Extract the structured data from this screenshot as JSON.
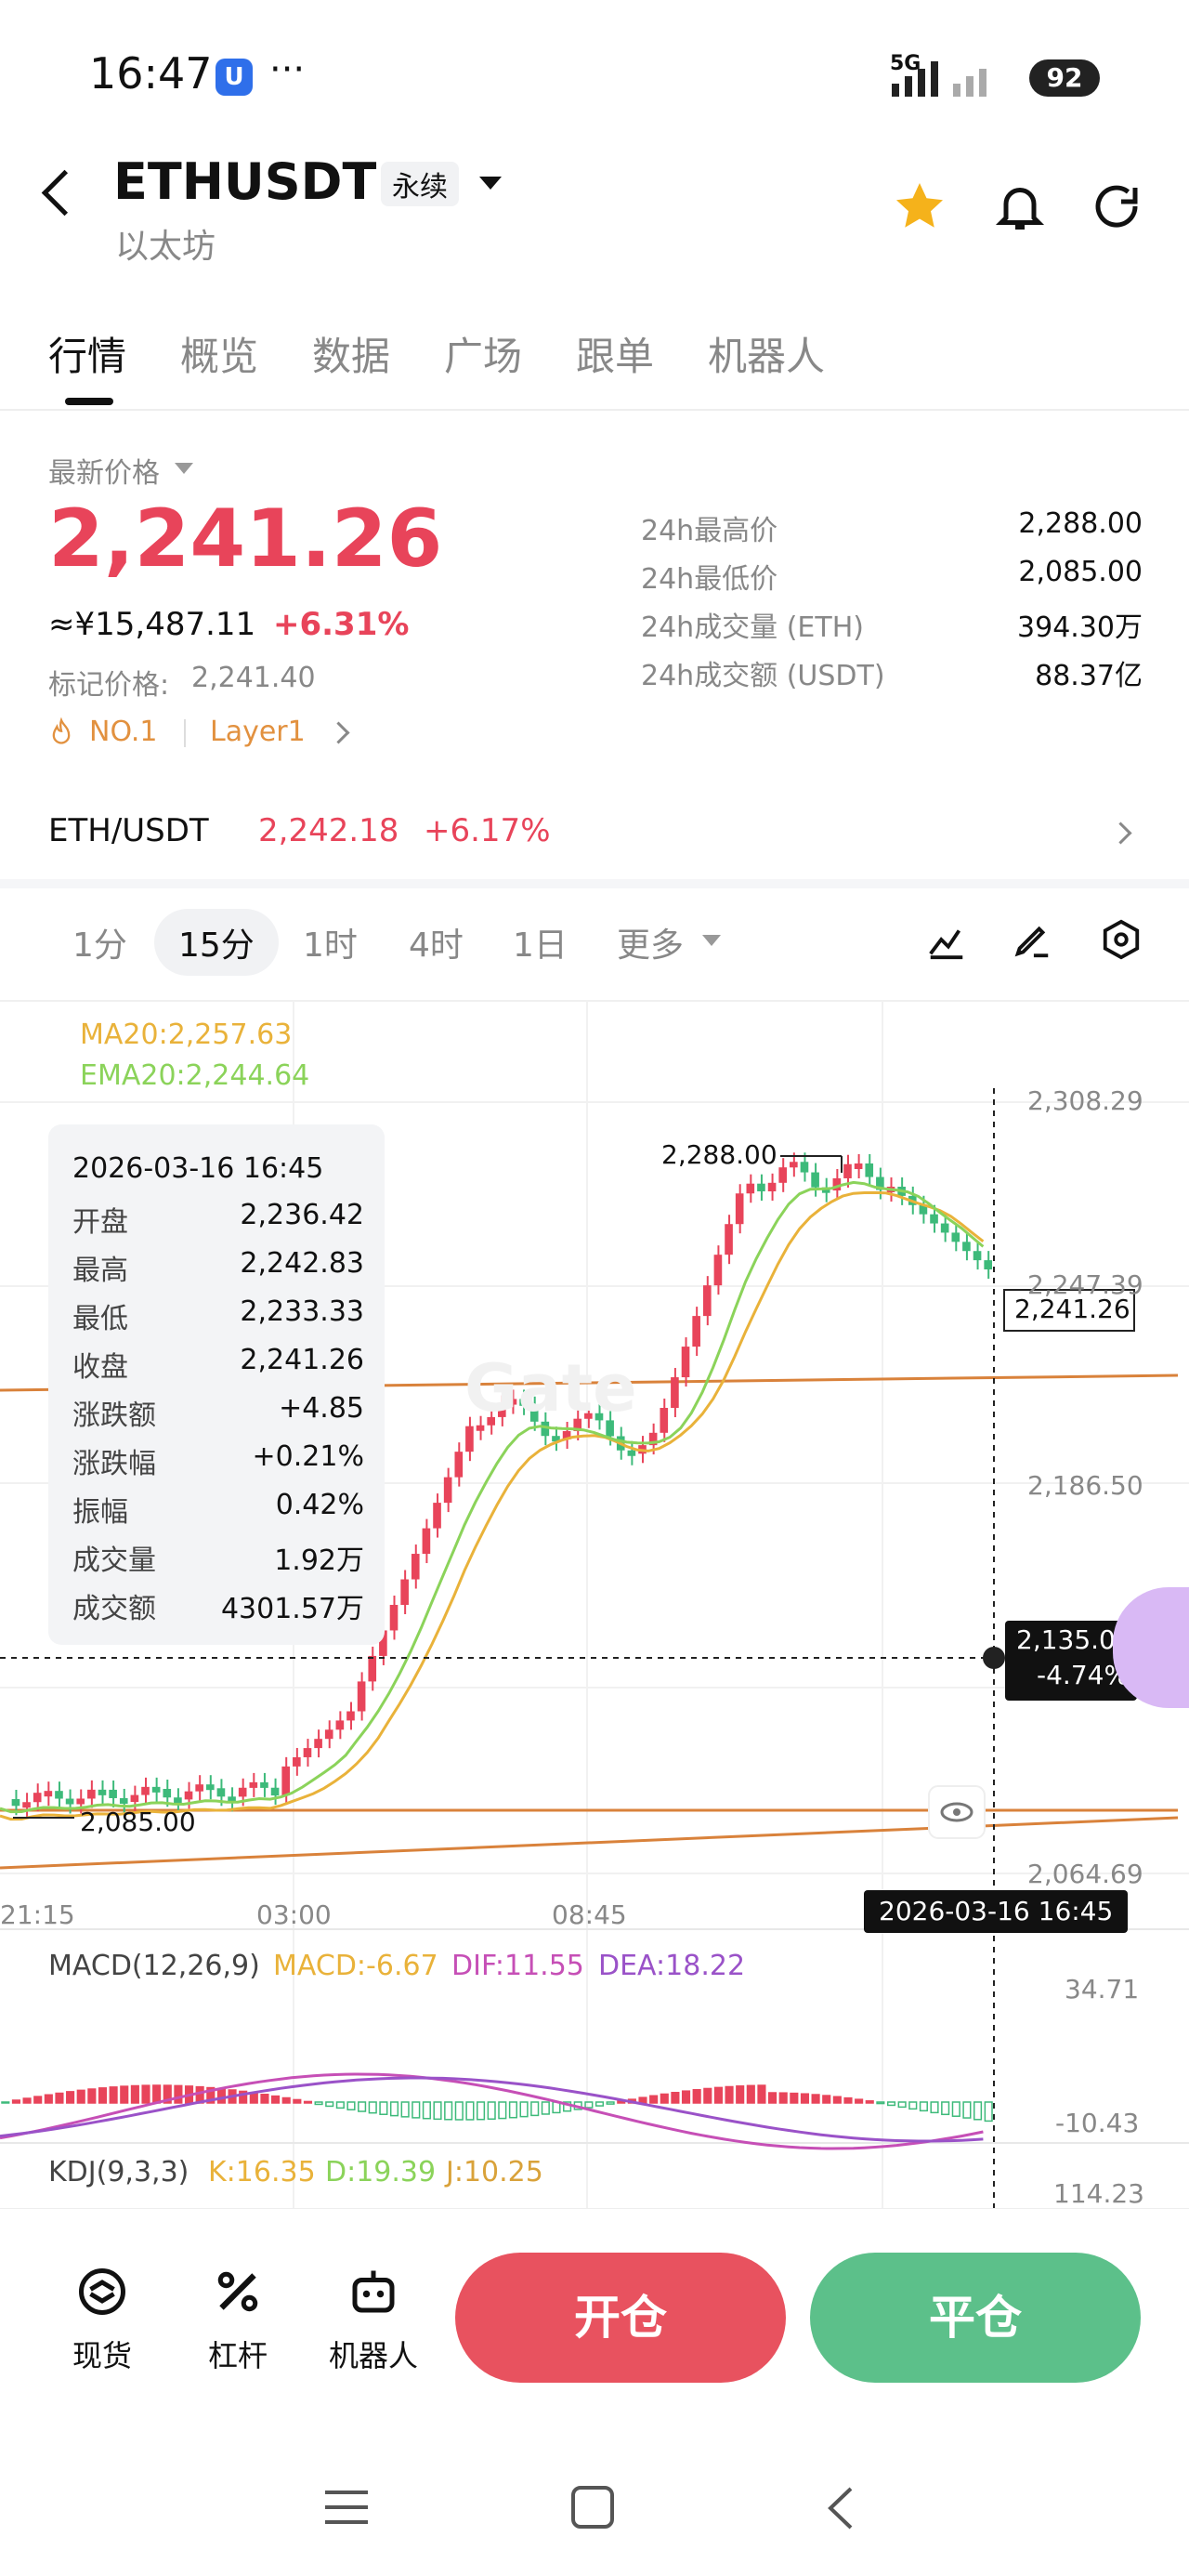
{
  "status_bar": {
    "time": "16:47",
    "app_badge": "U",
    "more": "···",
    "network": "5G",
    "battery": "92"
  },
  "header": {
    "symbol": "ETHUSDT",
    "contract_type": "永续",
    "name": "以太坊"
  },
  "tabs": [
    {
      "label": "行情",
      "active": true
    },
    {
      "label": "概览"
    },
    {
      "label": "数据"
    },
    {
      "label": "广场"
    },
    {
      "label": "跟单"
    },
    {
      "label": "机器人"
    }
  ],
  "price": {
    "label": "最新价格",
    "last": "2,241.26",
    "cny": "≈¥15,487.11",
    "change_pct": "+6.31%",
    "mark_label": "标记价格:",
    "mark_value": "2,241.40",
    "rank": "NO.1",
    "category": "Layer1"
  },
  "stats": [
    {
      "label": "24h最高价",
      "value": "2,288.00"
    },
    {
      "label": "24h最低价",
      "value": "2,085.00"
    },
    {
      "label": "24h成交量 (ETH)",
      "value": "394.30万"
    },
    {
      "label": "24h成交额 (USDT)",
      "value": "88.37亿"
    }
  ],
  "spot_pair": {
    "name": "ETH/USDT",
    "price": "2,242.18",
    "change": "+6.17%"
  },
  "timeframes": [
    {
      "label": "1分"
    },
    {
      "label": "15分",
      "active": true
    },
    {
      "label": "1时"
    },
    {
      "label": "4时"
    },
    {
      "label": "1日"
    },
    {
      "label": "更多"
    }
  ],
  "indicators": {
    "ma20": "MA20:2,257.63",
    "ema20": "EMA20:2,244.64"
  },
  "tooltip": {
    "datetime": "2026-03-16 16:45",
    "rows": [
      {
        "label": "开盘",
        "value": "2,236.42"
      },
      {
        "label": "最高",
        "value": "2,242.83"
      },
      {
        "label": "最低",
        "value": "2,233.33"
      },
      {
        "label": "收盘",
        "value": "2,241.26"
      },
      {
        "label": "涨跌额",
        "value": "+4.85"
      },
      {
        "label": "涨跌幅",
        "value": "+0.21%"
      },
      {
        "label": "振幅",
        "value": "0.42%"
      },
      {
        "label": "成交量",
        "value": "1.92万"
      },
      {
        "label": "成交额",
        "value": "4301.57万"
      }
    ]
  },
  "chart_data": {
    "type": "candlestick",
    "y_ticks": [
      "2,308.29",
      "2,247.39",
      "2,186.50",
      "2,064.69"
    ],
    "x_ticks": [
      "21:15",
      "03:00",
      "08:45"
    ],
    "high_label": "2,288.00",
    "low_label": "2,085.00",
    "last_price_tag": "2,241.26",
    "cursor_price": "2,135.01",
    "cursor_pct": "-4.74%",
    "cursor_time": "2026-03-16 16:45",
    "ylim": [
      2064.69,
      2308.29
    ]
  },
  "macd": {
    "title": "MACD(12,26,9)",
    "macd": "MACD:-6.67",
    "dif": "DIF:11.55",
    "dea": "DEA:18.22",
    "top": "34.71",
    "bottom": "-10.43"
  },
  "kdj": {
    "title": "KDJ(9,3,3)",
    "k": "K:16.35",
    "d": "D:19.39",
    "j": "J:10.25",
    "top": "114.23"
  },
  "bottom_nav": [
    {
      "label": "现货"
    },
    {
      "label": "杠杆"
    },
    {
      "label": "机器人"
    }
  ],
  "actions": {
    "open": "开仓",
    "close": "平仓"
  },
  "colors": {
    "up": "#e8445a",
    "down": "#3dba7a",
    "ma": "#e9b23a",
    "ema": "#8bd35a",
    "accent_star": "#f5b21b"
  }
}
